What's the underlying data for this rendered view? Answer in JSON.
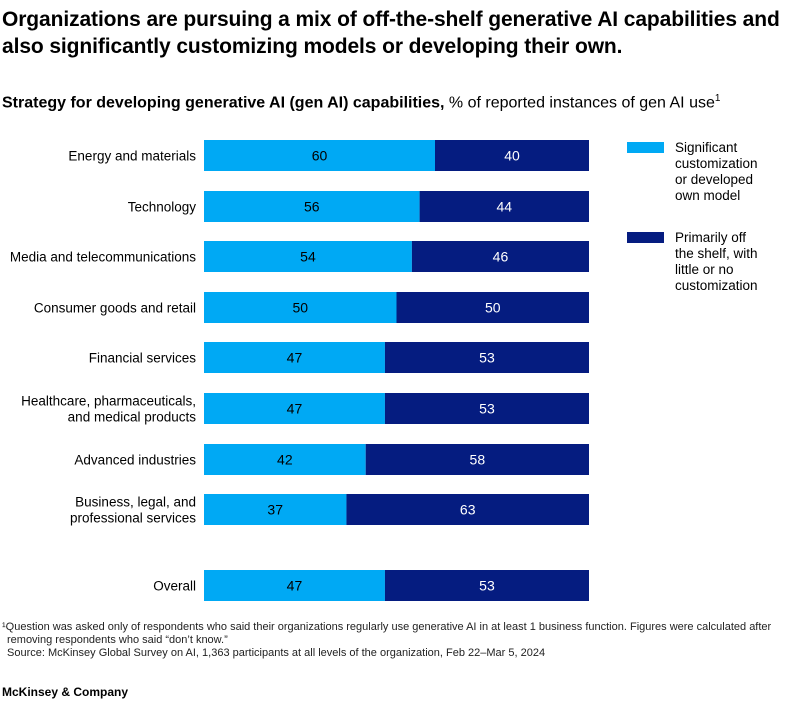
{
  "title": "Organizations are pursuing a mix of off-the-shelf generative AI capabilities and also significantly customizing models or developing their own.",
  "subtitle": {
    "bold": "Strategy for developing generative AI (gen AI) capabilities,",
    "normal": " % of reported instances of gen AI use",
    "sup": "1"
  },
  "chart_data": {
    "type": "bar",
    "orientation": "horizontal",
    "stacked": true,
    "categories": [
      [
        "Energy and materials"
      ],
      [
        "Technology"
      ],
      [
        "Media and telecommunications"
      ],
      [
        "Consumer goods and retail"
      ],
      [
        "Financial services"
      ],
      [
        "Healthcare, pharmaceuticals,",
        "and medical products"
      ],
      [
        "Advanced industries"
      ],
      [
        "Business, legal, and",
        "professional services"
      ],
      [
        "Overall"
      ]
    ],
    "series": [
      {
        "name": "Significant customization or developed own model",
        "legend_lines": [
          "Significant",
          "customization",
          "or developed",
          "own model"
        ],
        "color": "#00A9F4",
        "values": [
          60,
          56,
          54,
          50,
          47,
          47,
          42,
          37,
          47
        ]
      },
      {
        "name": "Primarily off the shelf, with little or no customization",
        "legend_lines": [
          "Primarily off",
          "the shelf, with",
          "little or no",
          "customization"
        ],
        "color": "#051C80",
        "values": [
          40,
          44,
          46,
          50,
          53,
          53,
          58,
          63,
          53
        ]
      }
    ],
    "xlim": [
      0,
      100
    ],
    "legend_position": "right",
    "grid": false
  },
  "footnote": {
    "line1": "¹Question was asked only of respondents who said their organizations regularly use generative AI in at least 1 business function. Figures were calculated after",
    "line2": "removing respondents who said “don’t know.”",
    "source": "Source: McKinsey Global Survey on AI, 1,363 participants at all levels of the organization, Feb 22–Mar 5, 2024"
  },
  "brand": "McKinsey & Company"
}
